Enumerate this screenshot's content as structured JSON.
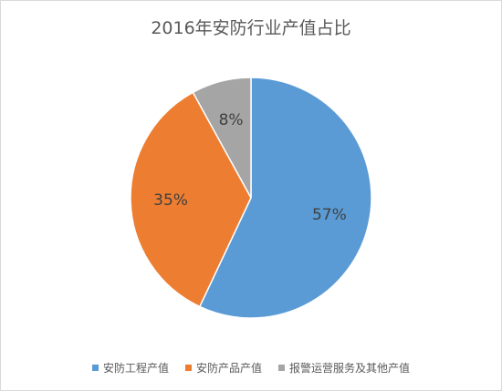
{
  "chart_data": {
    "type": "pie",
    "title": "2016年安防行业产值占比",
    "categories": [
      "安防工程产值",
      "安防产品产值",
      "报警运营服务及其他产值"
    ],
    "values": [
      57,
      35,
      8
    ],
    "labels": [
      "57%",
      "35%",
      "8%"
    ],
    "colors": [
      "#5b9bd5",
      "#ed7d31",
      "#a5a5a5"
    ],
    "legend": "bottom"
  }
}
